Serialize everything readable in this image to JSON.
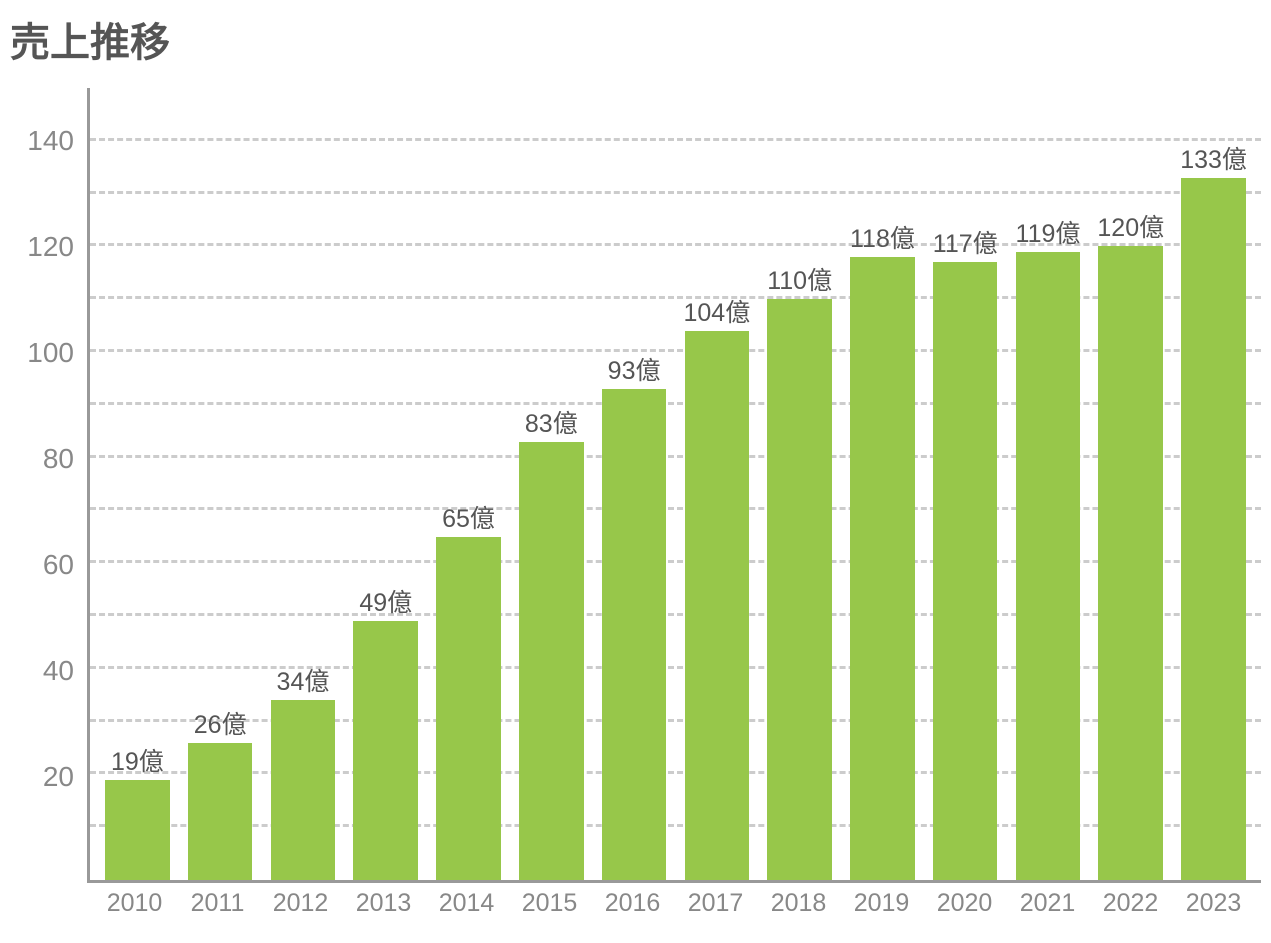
{
  "chart": {
    "type": "bar",
    "title": "売上推移",
    "title_fontsize": 40,
    "title_color": "#555555",
    "categories": [
      "2010",
      "2011",
      "2012",
      "2013",
      "2014",
      "2015",
      "2016",
      "2017",
      "2018",
      "2019",
      "2020",
      "2021",
      "2022",
      "2023"
    ],
    "values": [
      19,
      26,
      34,
      49,
      65,
      83,
      93,
      104,
      110,
      118,
      117,
      119,
      120,
      133
    ],
    "value_labels": [
      "19億",
      "26億",
      "34億",
      "49億",
      "65億",
      "83億",
      "93億",
      "104億",
      "110億",
      "118億",
      "117億",
      "119億",
      "120億",
      "133億"
    ],
    "bar_color": "#97c74a",
    "bar_width_ratio": 0.78,
    "ylim": [
      0,
      150
    ],
    "ytick_values": [
      20,
      40,
      60,
      80,
      100,
      120,
      140
    ],
    "ytick_labels": [
      "20",
      "40",
      "60",
      "80",
      "100",
      "120",
      "140"
    ],
    "grid_values": [
      10,
      20,
      30,
      40,
      50,
      60,
      70,
      80,
      90,
      100,
      110,
      120,
      130,
      140
    ],
    "grid_color": "#cccccc",
    "axis_color": "#999999",
    "tick_label_color": "#888888",
    "value_label_color": "#555555",
    "label_fontsize": 25,
    "tick_fontsize": 28,
    "background_color": "#ffffff"
  }
}
